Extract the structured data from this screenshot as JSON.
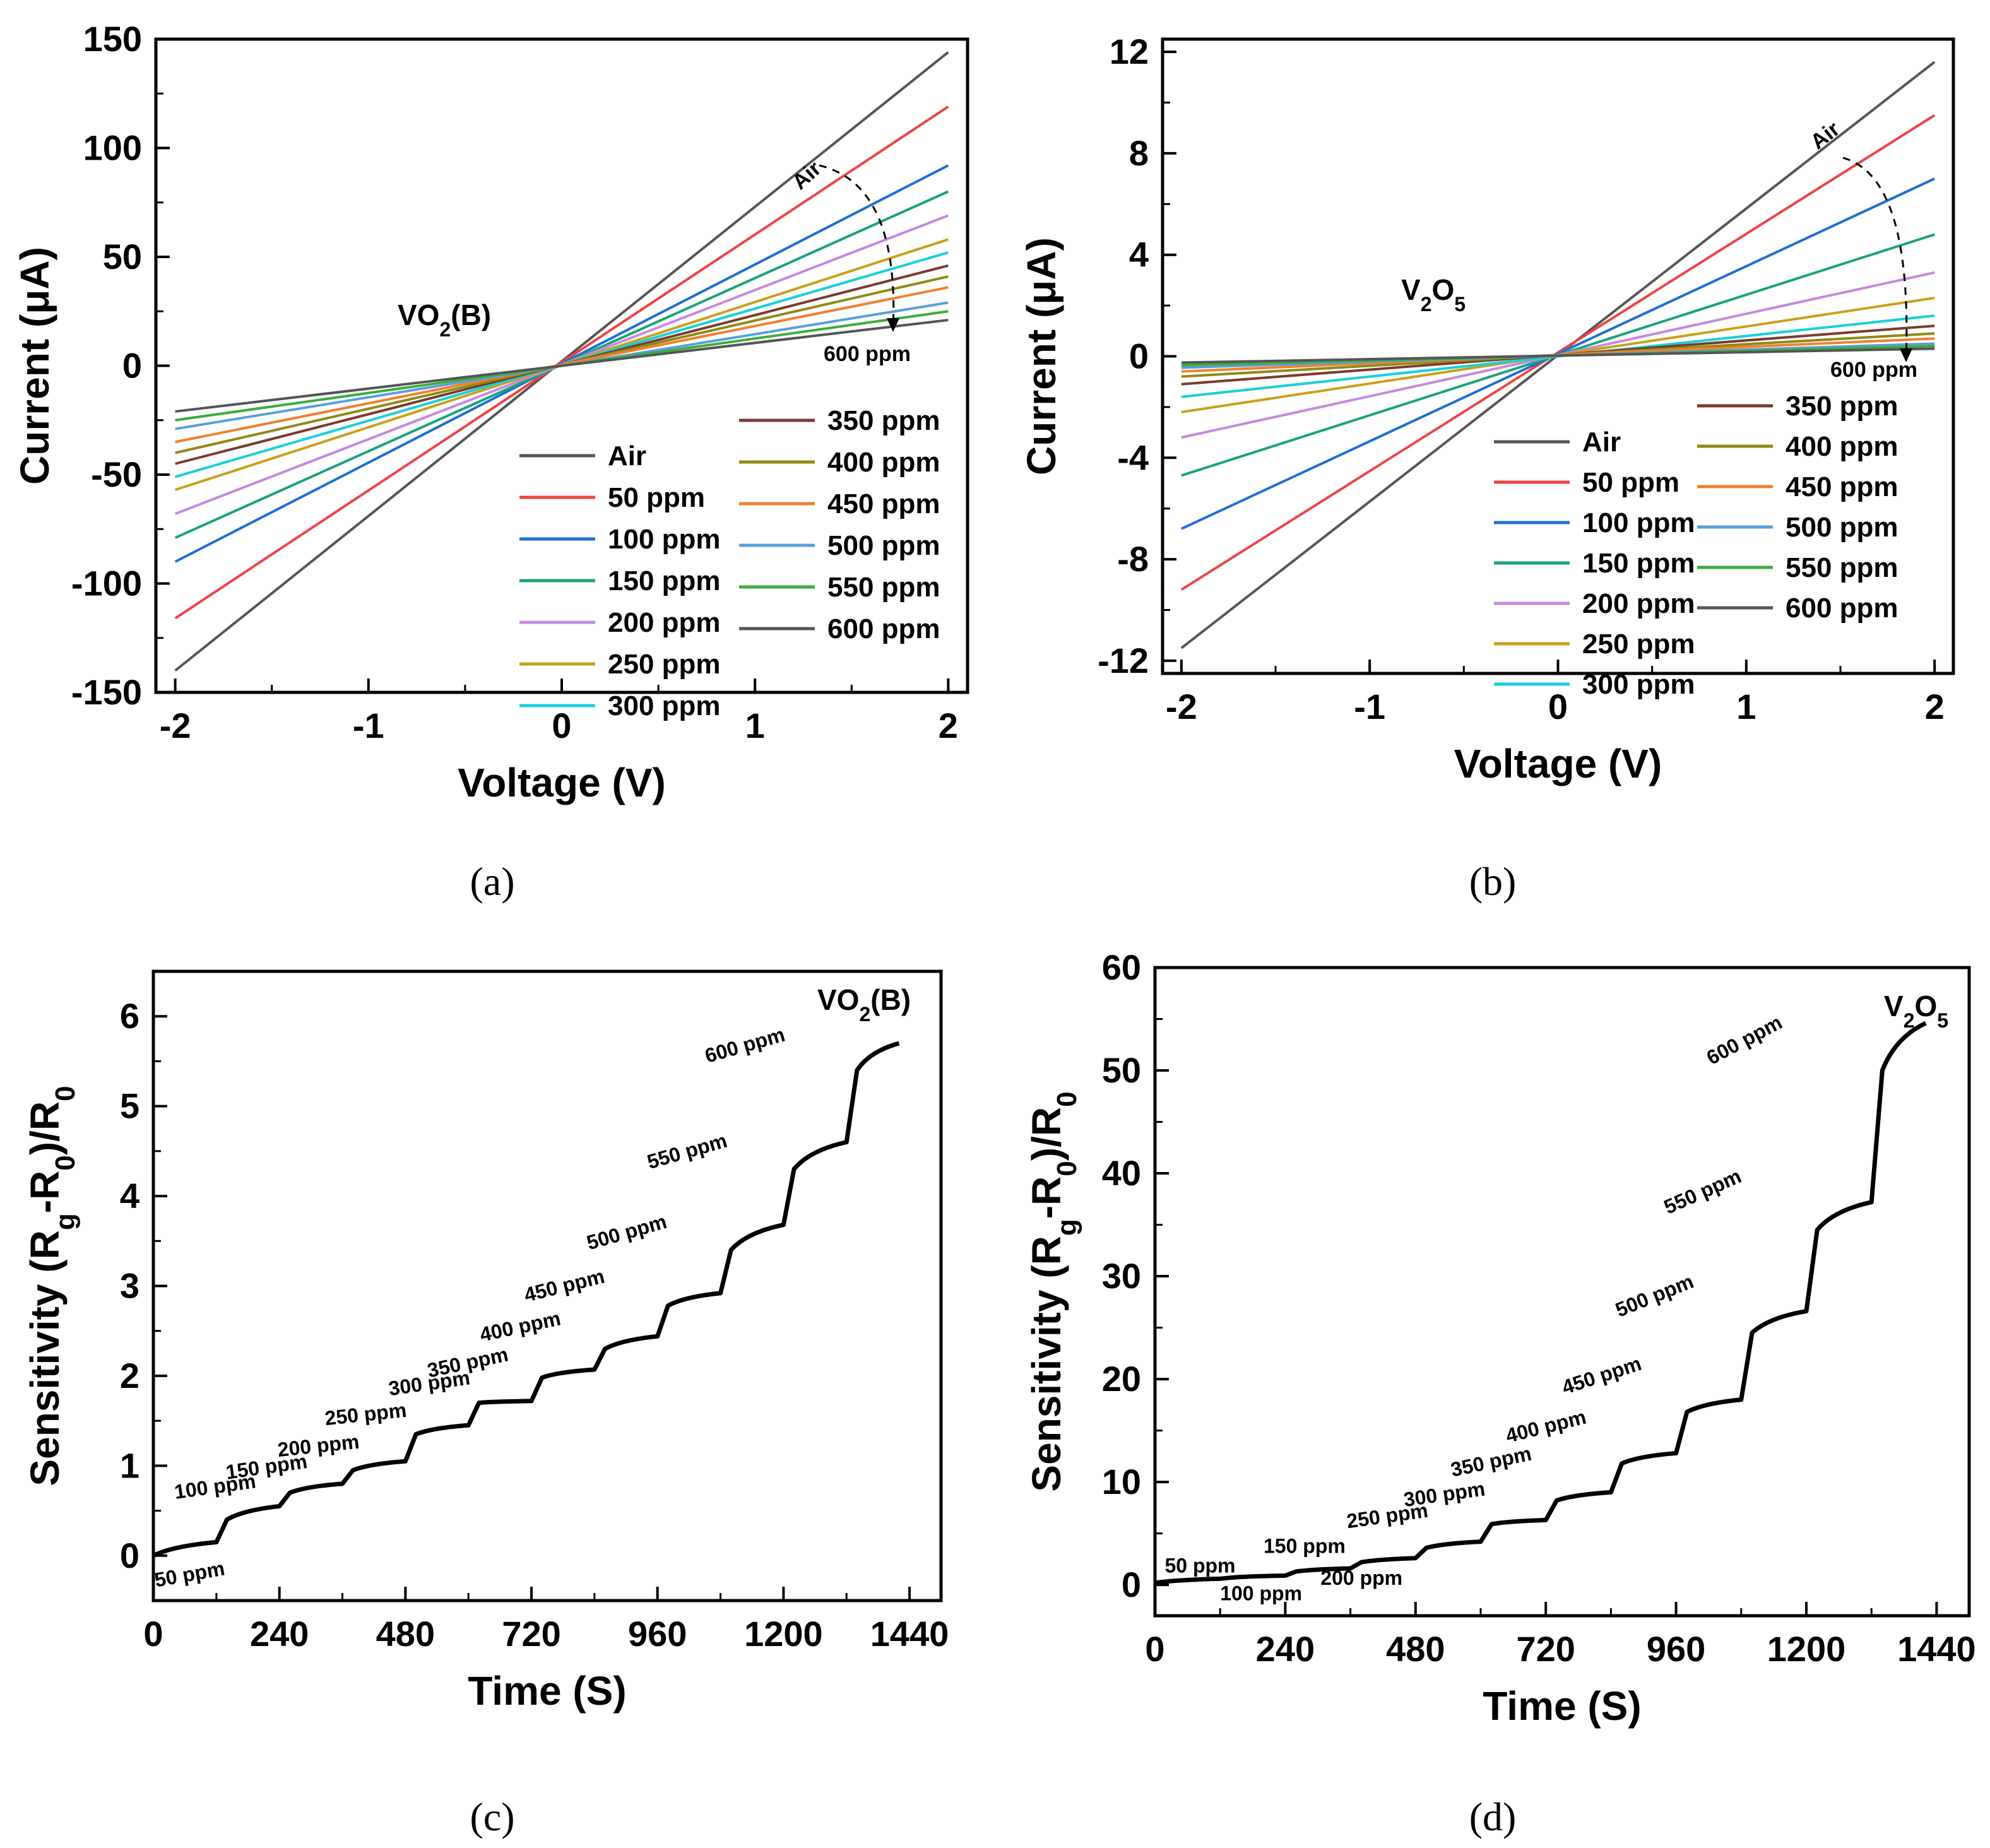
{
  "colors": {
    "axis": "#000000",
    "series_iv": [
      "#555555",
      "#ee4444",
      "#1f6fd1",
      "#1aa37a",
      "#c58ae0",
      "#c9a01a",
      "#19d0d8",
      "#7a3b2e",
      "#8f8a13",
      "#f08030",
      "#5a9fd8",
      "#3bad3b",
      "#555555"
    ]
  },
  "captions": [
    "(a)",
    "(b)",
    "(c)",
    "(d)"
  ],
  "chart_data": [
    {
      "id": "a",
      "type": "line",
      "caption": "(a)",
      "xlabel": "Voltage (V)",
      "ylabel": "Current (μA)",
      "xlim": [
        -2.1,
        2.1
      ],
      "ylim": [
        -150,
        150
      ],
      "xticks": [
        -2,
        -1,
        0,
        1,
        2
      ],
      "yticks": [
        -150,
        -100,
        -50,
        0,
        50,
        100,
        150
      ],
      "inset_label": {
        "main": "VO",
        "sub": "2",
        "tail": "(B)"
      },
      "arrow_start_label": "Air",
      "arrow_end_label": "600 ppm",
      "series": [
        {
          "name": "Air",
          "y_at_neg2": -140,
          "y_at_pos2": 144
        },
        {
          "name": "50 ppm",
          "y_at_neg2": -116,
          "y_at_pos2": 119
        },
        {
          "name": "100 ppm",
          "y_at_neg2": -90,
          "y_at_pos2": 92
        },
        {
          "name": "150 ppm",
          "y_at_neg2": -79,
          "y_at_pos2": 80
        },
        {
          "name": "200 ppm",
          "y_at_neg2": -68,
          "y_at_pos2": 69
        },
        {
          "name": "250 ppm",
          "y_at_neg2": -57,
          "y_at_pos2": 58
        },
        {
          "name": "300 ppm",
          "y_at_neg2": -51,
          "y_at_pos2": 52
        },
        {
          "name": "350 ppm",
          "y_at_neg2": -45,
          "y_at_pos2": 46
        },
        {
          "name": "400 ppm",
          "y_at_neg2": -40,
          "y_at_pos2": 41
        },
        {
          "name": "450 ppm",
          "y_at_neg2": -35,
          "y_at_pos2": 36
        },
        {
          "name": "500 ppm",
          "y_at_neg2": -29,
          "y_at_pos2": 29
        },
        {
          "name": "550 ppm",
          "y_at_neg2": -25,
          "y_at_pos2": 25
        },
        {
          "name": "600 ppm",
          "y_at_neg2": -21,
          "y_at_pos2": 21
        }
      ]
    },
    {
      "id": "b",
      "type": "line",
      "caption": "(b)",
      "xlabel": "Voltage (V)",
      "ylabel": "Current (μA)",
      "xlim": [
        -2.1,
        2.1
      ],
      "ylim": [
        -12.5,
        12.5
      ],
      "xticks": [
        -2,
        -1,
        0,
        1,
        2
      ],
      "yticks": [
        -12,
        -8,
        -4,
        0,
        4,
        8,
        12
      ],
      "inset_label": {
        "main": "V",
        "sub": "2",
        "mid": "O",
        "sub2": "5"
      },
      "arrow_start_label": "Air",
      "arrow_end_label": "600 ppm",
      "series": [
        {
          "name": "Air",
          "y_at_neg2": -11.5,
          "y_at_pos2": 11.6
        },
        {
          "name": "50 ppm",
          "y_at_neg2": -9.2,
          "y_at_pos2": 9.5
        },
        {
          "name": "100 ppm",
          "y_at_neg2": -6.8,
          "y_at_pos2": 7.0
        },
        {
          "name": "150 ppm",
          "y_at_neg2": -4.7,
          "y_at_pos2": 4.8
        },
        {
          "name": "200 ppm",
          "y_at_neg2": -3.2,
          "y_at_pos2": 3.3
        },
        {
          "name": "250 ppm",
          "y_at_neg2": -2.2,
          "y_at_pos2": 2.3
        },
        {
          "name": "300 ppm",
          "y_at_neg2": -1.6,
          "y_at_pos2": 1.6
        },
        {
          "name": "350 ppm",
          "y_at_neg2": -1.1,
          "y_at_pos2": 1.2
        },
        {
          "name": "400 ppm",
          "y_at_neg2": -0.8,
          "y_at_pos2": 0.9
        },
        {
          "name": "450 ppm",
          "y_at_neg2": -0.6,
          "y_at_pos2": 0.7
        },
        {
          "name": "500 ppm",
          "y_at_neg2": -0.45,
          "y_at_pos2": 0.5
        },
        {
          "name": "550 ppm",
          "y_at_neg2": -0.35,
          "y_at_pos2": 0.4
        },
        {
          "name": "600 ppm",
          "y_at_neg2": -0.25,
          "y_at_pos2": 0.3
        }
      ]
    },
    {
      "id": "c",
      "type": "line",
      "caption": "(c)",
      "xlabel": "Time (S)",
      "ylabel": "Sensitivity (Rg-R0)/R0",
      "xlim": [
        0,
        1500
      ],
      "ylim": [
        -0.5,
        6.5
      ],
      "xticks": [
        0,
        240,
        480,
        720,
        960,
        1200,
        1440
      ],
      "yticks": [
        0,
        1,
        2,
        3,
        4,
        5,
        6
      ],
      "inset_label": {
        "main": "VO",
        "sub": "2",
        "tail": "(B)"
      },
      "steps": [
        {
          "label": "50 ppm",
          "t_start": 0,
          "y_start": 0.0,
          "y_end": 0.15
        },
        {
          "label": "100 ppm",
          "t_start": 120,
          "y_start": 0.4,
          "y_end": 0.55
        },
        {
          "label": "150 ppm",
          "t_start": 240,
          "y_start": 0.7,
          "y_end": 0.8
        },
        {
          "label": "200 ppm",
          "t_start": 360,
          "y_start": 0.95,
          "y_end": 1.05
        },
        {
          "label": "250 ppm",
          "t_start": 480,
          "y_start": 1.35,
          "y_end": 1.45
        },
        {
          "label": "300 ppm",
          "t_start": 600,
          "y_start": 1.7,
          "y_end": 1.72
        },
        {
          "label": "350 ppm",
          "t_start": 720,
          "y_start": 1.98,
          "y_end": 2.07
        },
        {
          "label": "400 ppm",
          "t_start": 840,
          "y_start": 2.3,
          "y_end": 2.44
        },
        {
          "label": "450 ppm",
          "t_start": 960,
          "y_start": 2.78,
          "y_end": 2.92
        },
        {
          "label": "500 ppm",
          "t_start": 1080,
          "y_start": 3.4,
          "y_end": 3.68
        },
        {
          "label": "550 ppm",
          "t_start": 1200,
          "y_start": 4.3,
          "y_end": 4.6
        },
        {
          "label": "600 ppm",
          "t_start": 1320,
          "y_start": 5.4,
          "y_end": 5.7
        }
      ],
      "t_end": 1420
    },
    {
      "id": "d",
      "type": "line",
      "caption": "(d)",
      "xlabel": "Time (S)",
      "ylabel": "Sensitivity (Rg-R0)/R0",
      "xlim": [
        0,
        1500
      ],
      "ylim": [
        -3,
        60
      ],
      "xticks": [
        0,
        240,
        480,
        720,
        960,
        1200,
        1440
      ],
      "yticks": [
        0,
        10,
        20,
        30,
        40,
        50,
        60
      ],
      "inset_label": {
        "main": "V",
        "sub": "2",
        "mid": "O",
        "sub2": "5"
      },
      "steps": [
        {
          "label": "50 ppm",
          "t_start": 0,
          "y_start": 0.2,
          "y_end": 0.6
        },
        {
          "label": "100 ppm",
          "t_start": 120,
          "y_start": 0.7,
          "y_end": 0.9
        },
        {
          "label": "150 ppm",
          "t_start": 240,
          "y_start": 1.3,
          "y_end": 1.6
        },
        {
          "label": "200 ppm",
          "t_start": 360,
          "y_start": 2.2,
          "y_end": 2.6
        },
        {
          "label": "250 ppm",
          "t_start": 480,
          "y_start": 3.6,
          "y_end": 4.2
        },
        {
          "label": "300 ppm",
          "t_start": 600,
          "y_start": 5.9,
          "y_end": 6.3
        },
        {
          "label": "350 ppm",
          "t_start": 720,
          "y_start": 8.2,
          "y_end": 9.0
        },
        {
          "label": "400 ppm",
          "t_start": 840,
          "y_start": 11.8,
          "y_end": 12.8
        },
        {
          "label": "450 ppm",
          "t_start": 960,
          "y_start": 16.8,
          "y_end": 18.0
        },
        {
          "label": "500 ppm",
          "t_start": 1080,
          "y_start": 24.5,
          "y_end": 26.6
        },
        {
          "label": "550 ppm",
          "t_start": 1200,
          "y_start": 34.5,
          "y_end": 37.2
        },
        {
          "label": "600 ppm",
          "t_start": 1320,
          "y_start": 50.0,
          "y_end": 54.6
        }
      ],
      "t_end": 1420
    }
  ]
}
